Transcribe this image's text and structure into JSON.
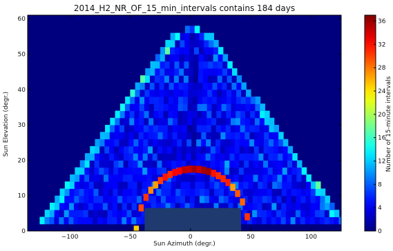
{
  "chart_data": {
    "type": "heatmap",
    "title": "2014_H2_NR_OF_15_min_intervals contains 184 days",
    "xlabel": "Sun Azimuth (degr.)",
    "ylabel": "Sun Elevation (degr.)",
    "xlim": [
      -135,
      125
    ],
    "ylim": [
      0,
      61
    ],
    "xticks": [
      -100,
      -50,
      0,
      50,
      100
    ],
    "xtick_labels": [
      "−100",
      "−50",
      "0",
      "50",
      "100"
    ],
    "yticks": [
      0,
      10,
      20,
      30,
      40,
      50,
      60
    ],
    "ytick_labels": [
      "0",
      "10",
      "20",
      "30",
      "40",
      "50",
      "60"
    ],
    "colorbar": {
      "label": "Number of 15-minute intervals",
      "vmin": 0,
      "vmax": 37,
      "ticks": [
        0,
        4,
        8,
        12,
        16,
        20,
        24,
        28,
        32,
        36
      ],
      "tick_labels": [
        "0",
        "4",
        "8",
        "12",
        "16",
        "20",
        "24",
        "28",
        "32",
        "36"
      ],
      "colormap": "jet"
    },
    "background_value": 0,
    "bin_size_deg": 4,
    "cell_groups": [
      {
        "name": "sun-path outer envelope",
        "typical_value": 8
      },
      {
        "name": "bright arc below 17 degrees elevation",
        "typical_value": 24,
        "peak_value": 36
      },
      {
        "name": "interior ridges",
        "typical_value": 5
      },
      {
        "name": "low-elevation dark block",
        "typical_value": 3
      }
    ],
    "grid": false
  },
  "colors": {
    "background": "#00007f",
    "arc_hot": "#ff0000",
    "block": "#1e3a6e",
    "frame": "#000000"
  }
}
